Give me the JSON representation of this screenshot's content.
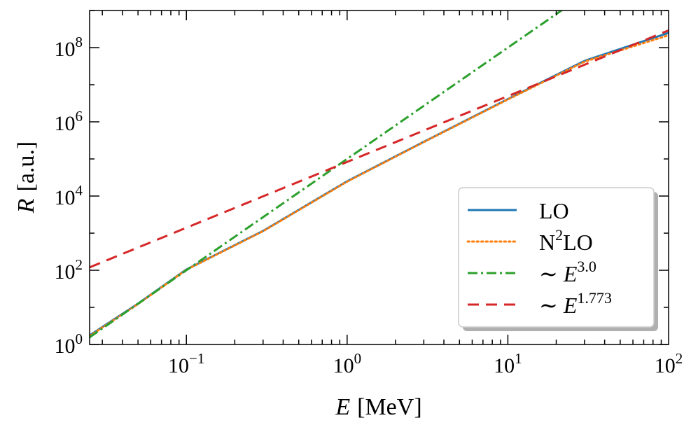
{
  "chart_data": {
    "type": "line",
    "xscale": "log",
    "yscale": "log",
    "xlim": [
      0.025,
      100
    ],
    "ylim": [
      1,
      1000000000
    ],
    "xlabel": {
      "var": "E",
      "unit": "[MeV]"
    },
    "ylabel": {
      "var": "R",
      "unit": "[a.u.]"
    },
    "xticks": [
      {
        "value": 0.1,
        "base": "10",
        "exp": "−1"
      },
      {
        "value": 1,
        "base": "10",
        "exp": "0"
      },
      {
        "value": 10,
        "base": "10",
        "exp": "1"
      },
      {
        "value": 100,
        "base": "10",
        "exp": "2"
      }
    ],
    "yticks": [
      {
        "value": 1,
        "base": "10",
        "exp": "0"
      },
      {
        "value": 100,
        "base": "10",
        "exp": "2"
      },
      {
        "value": 10000,
        "base": "10",
        "exp": "4"
      },
      {
        "value": 1000000,
        "base": "10",
        "exp": "6"
      },
      {
        "value": 100000000,
        "base": "10",
        "exp": "8"
      }
    ],
    "legend_position": "lower-right",
    "series": [
      {
        "name": "LO",
        "label": "LO",
        "color": "#1f77b4",
        "style": "solid",
        "x": [
          0.025,
          0.05,
          0.1,
          0.3,
          1,
          3,
          10,
          30,
          100
        ],
        "y": [
          1.76,
          12.6,
          105,
          1150,
          25000,
          290000,
          4100000,
          44000000,
          250000000
        ]
      },
      {
        "name": "N2LO",
        "label": "N",
        "label_sup": "2",
        "label_after": "LO",
        "color": "#ff7f0e",
        "style": "dotted",
        "x": [
          0.025,
          0.05,
          0.1,
          0.3,
          1,
          3,
          10,
          30,
          100
        ],
        "y": [
          1.7,
          12.3,
          103,
          1130,
          24500,
          285000,
          4000000,
          42000000,
          215000000
        ]
      },
      {
        "name": "power-3.0",
        "label": "∼ E",
        "label_sup": "3.0",
        "color": "#2ca02c",
        "style": "dashdot",
        "power_law": {
          "A": 100000,
          "exponent": 3.0
        }
      },
      {
        "name": "power-1.773",
        "label": "∼ E",
        "label_sup": "1.773",
        "color": "#d62728",
        "style": "dashed",
        "power_law": {
          "A": 83000,
          "exponent": 1.773
        }
      }
    ]
  }
}
